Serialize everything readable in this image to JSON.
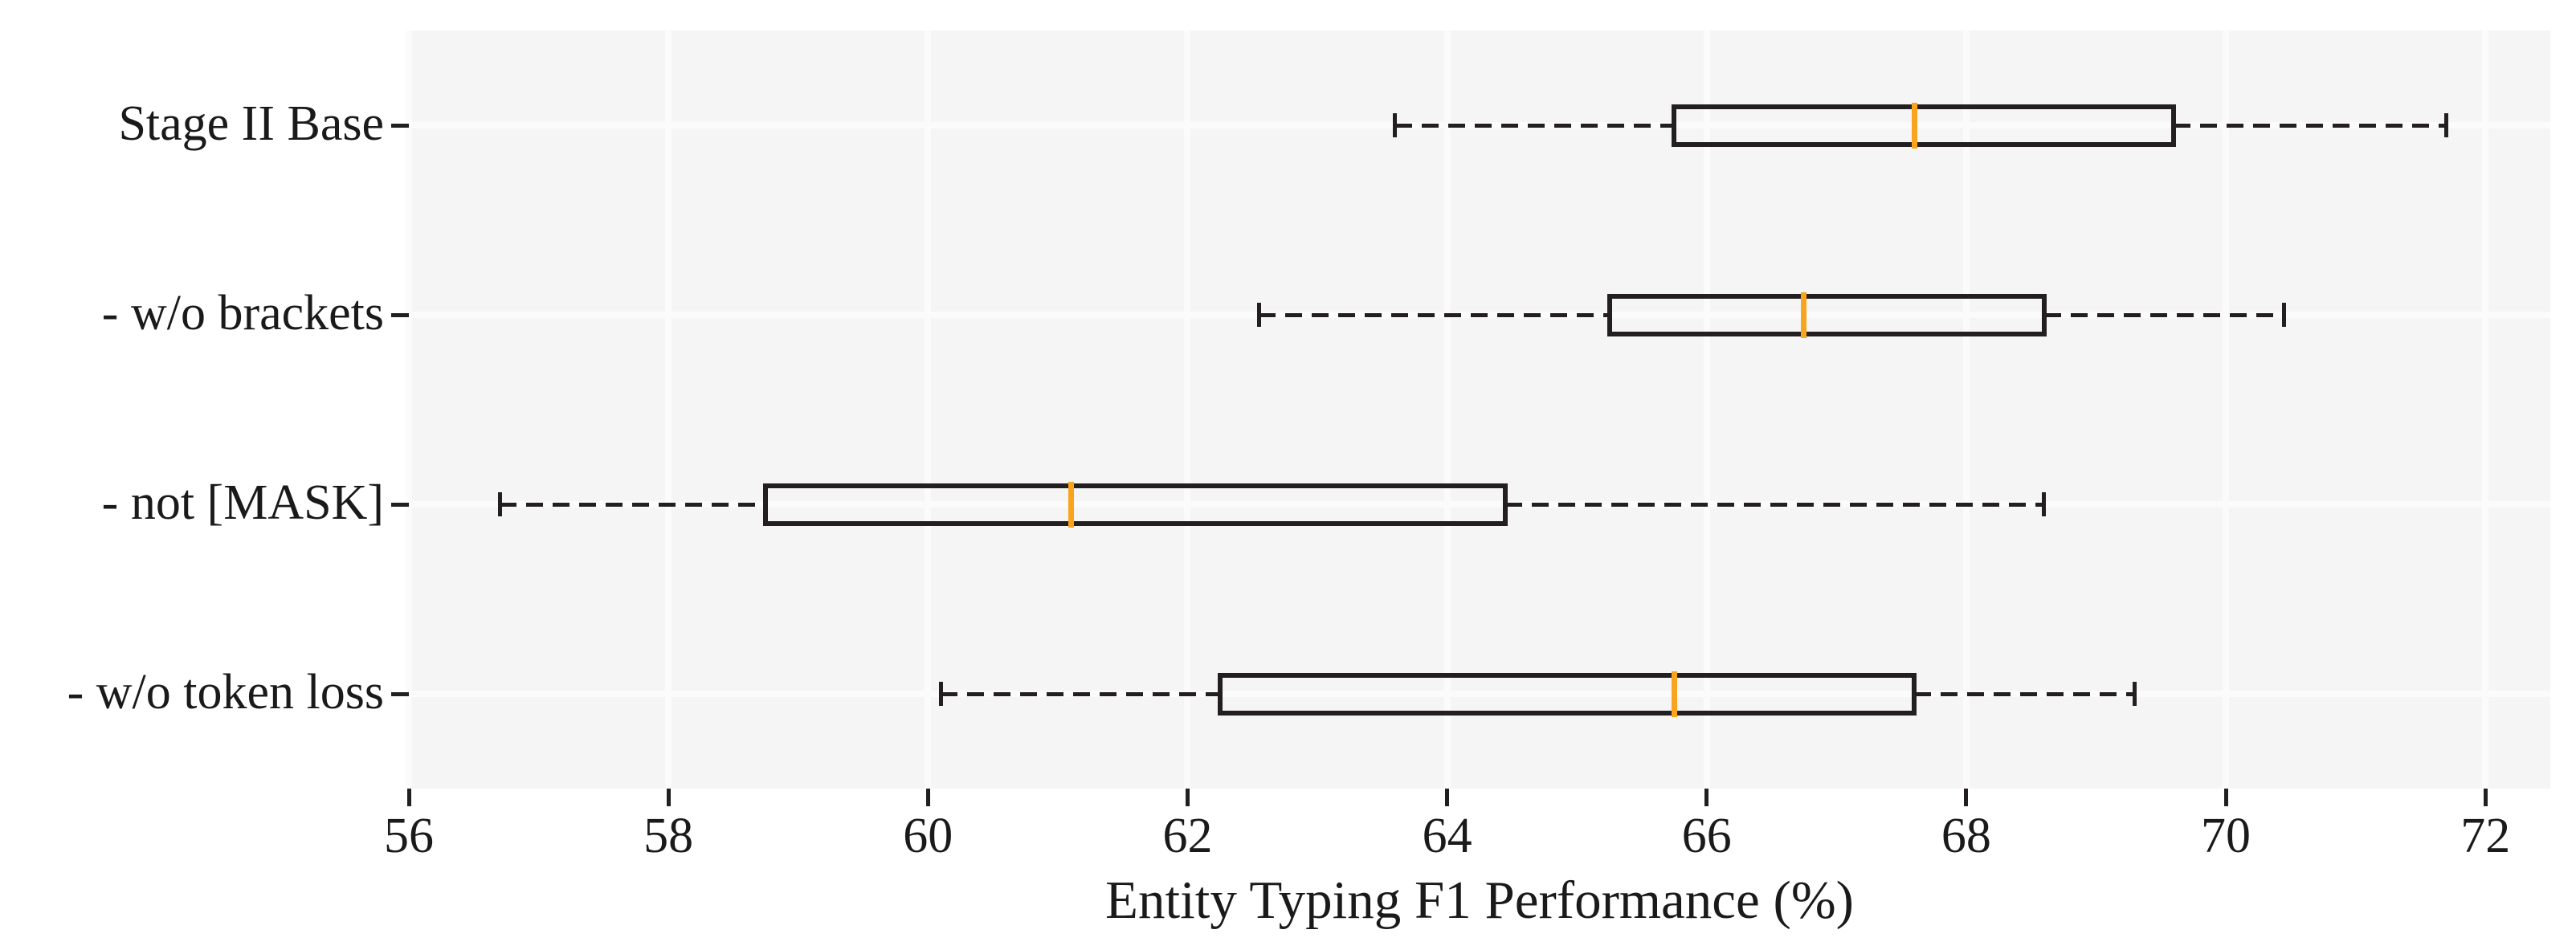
{
  "chart_data": {
    "type": "boxplot",
    "orientation": "horizontal",
    "title": "",
    "xlabel": "Entity Typing F1 Performance (%)",
    "ylabel": "",
    "categories": [
      "Stage II Base",
      "- w/o brackets",
      "- not [MASK]",
      "- w/o token loss"
    ],
    "series": [
      {
        "name": "Stage II Base",
        "whisker_low": 63.6,
        "q1": 65.75,
        "median": 67.6,
        "q3": 69.6,
        "whisker_high": 71.7
      },
      {
        "name": "- w/o brackets",
        "whisker_low": 62.55,
        "q1": 65.25,
        "median": 66.75,
        "q3": 68.6,
        "whisker_high": 70.45
      },
      {
        "name": "- not [MASK]",
        "whisker_low": 56.7,
        "q1": 58.75,
        "median": 61.1,
        "q3": 64.45,
        "whisker_high": 68.6
      },
      {
        "name": "- w/o token loss",
        "whisker_low": 60.1,
        "q1": 62.25,
        "median": 65.75,
        "q3": 67.6,
        "whisker_high": 69.3
      }
    ],
    "x_ticks": [
      56,
      58,
      60,
      62,
      64,
      66,
      68,
      70,
      72
    ],
    "xlim": [
      56,
      72.5
    ],
    "grid": true,
    "grid_color_note": "white gridlines on light-gray panel, vertical at each x tick and horizontal at each category row",
    "colors": {
      "median": "#FAA41E",
      "box_edge": "#231F20",
      "whisker": "#231F20",
      "plot_background": "#F5F5F5",
      "figure_background": "#FFFFFF",
      "gridline": "#FBFBFB",
      "text": "#1A1A1A"
    }
  }
}
